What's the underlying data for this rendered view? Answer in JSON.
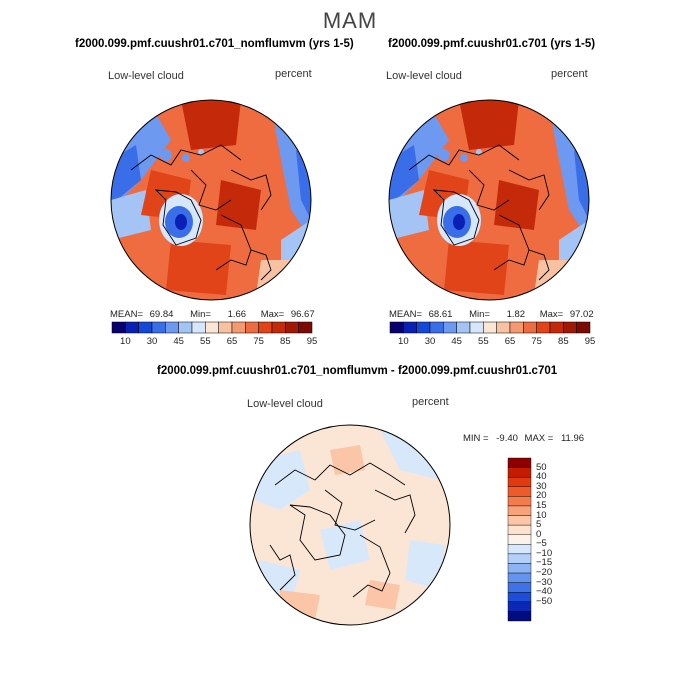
{
  "season": "MAM",
  "panels": [
    {
      "title": "f2000.099.pmf.cuushr01.c701_nomflumvm (yrs 1-5)",
      "field_label": "Low-level cloud",
      "units": "percent",
      "mean_label": "MEAN=",
      "mean": "69.84",
      "min_label": "Min=",
      "min": "1.66",
      "max_label": "Max=",
      "max": "96.67"
    },
    {
      "title": "f2000.099.pmf.cuushr01.c701 (yrs 1-5)",
      "field_label": "Low-level cloud",
      "units": "percent",
      "mean_label": "MEAN=",
      "mean": "68.61",
      "min_label": "Min=",
      "min": "1.82",
      "max_label": "Max=",
      "max": "97.02"
    }
  ],
  "abs_colorbar": {
    "colors": [
      "#08006e",
      "#0a1fb4",
      "#1449d8",
      "#3a6ee8",
      "#6d99f0",
      "#a5c4f6",
      "#d6e6fb",
      "#fbe6d6",
      "#f8c2a2",
      "#f49a70",
      "#ee6c40",
      "#e04418",
      "#c42a0a",
      "#a01806",
      "#7c0a04"
    ],
    "tick_labels": [
      "10",
      "30",
      "45",
      "55",
      "65",
      "75",
      "85",
      "95"
    ]
  },
  "diff_panel": {
    "title": "f2000.099.pmf.cuushr01.c701_nomflumvm - f2000.099.pmf.cuushr01.c701",
    "field_label": "Low-level cloud",
    "units": "percent",
    "min_label": "MIN =",
    "min": "-9.40",
    "max_label": "MAX =",
    "max": "11.96"
  },
  "diff_colorbar": {
    "colors": [
      "#8e0000",
      "#c41c00",
      "#e03a10",
      "#f05a2a",
      "#f47c4c",
      "#f8a27a",
      "#fbc6a8",
      "#fde2cf",
      "#fbf2ea",
      "#d8e8fb",
      "#b4d0f8",
      "#8cb4f4",
      "#6494ee",
      "#3e72e6",
      "#1e4ed8",
      "#0a28b4",
      "#000c80"
    ],
    "tick_labels": [
      "50",
      "40",
      "30",
      "20",
      "15",
      "10",
      "5",
      "0",
      "−5",
      "−10",
      "−15",
      "−20",
      "−30",
      "−40",
      "−50"
    ]
  },
  "colors": {
    "hot": "#e0401a",
    "warm": "#f26a3e",
    "cool": "#6d99f0",
    "cold": "#1440c8",
    "diff_warm": "#fbd9c2",
    "diff_cool": "#cfe0f8",
    "coast": "#000000"
  }
}
